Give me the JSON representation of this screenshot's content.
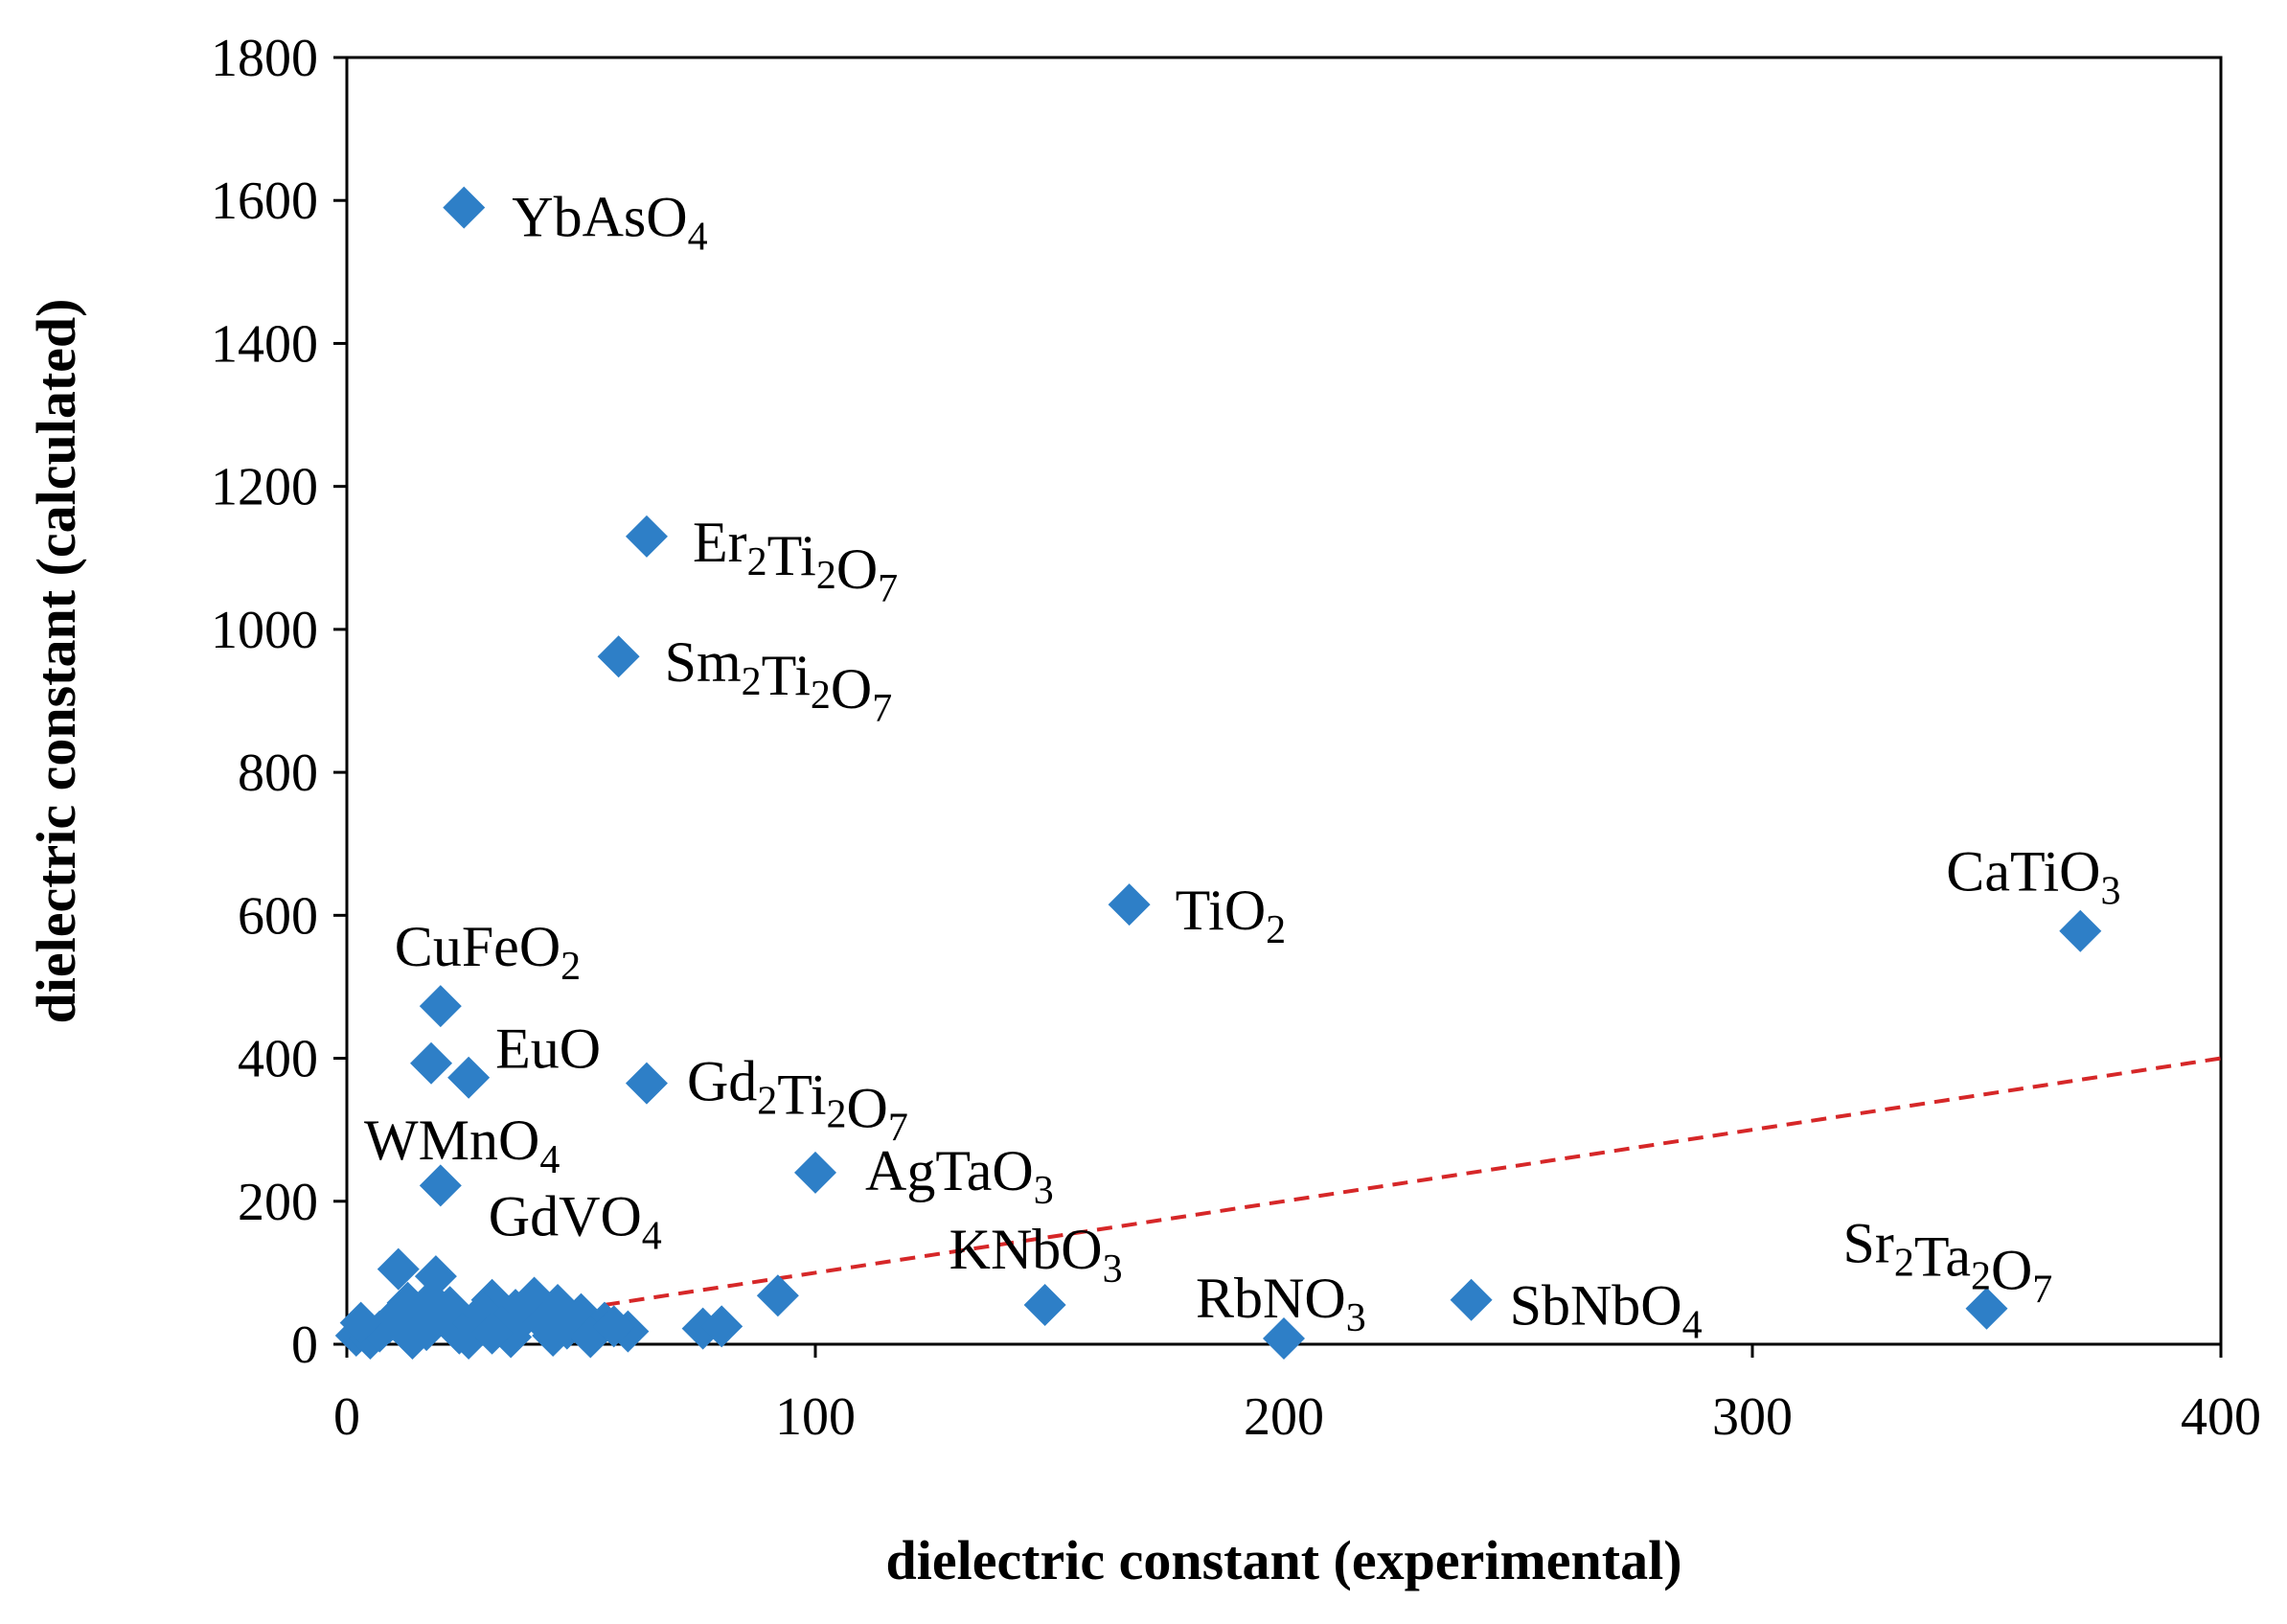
{
  "chart_data": {
    "type": "scatter",
    "title": "",
    "xlabel": "dielectric constant (experimental)",
    "ylabel": "dielectric constant (calculated)",
    "xlim": [
      0,
      400
    ],
    "ylim": [
      0,
      1800
    ],
    "xticks": [
      "0",
      "100",
      "200",
      "300",
      "400"
    ],
    "yticks": [
      "0",
      "200",
      "400",
      "600",
      "800",
      "1000",
      "1200",
      "1400",
      "1600",
      "1800"
    ],
    "grid": false,
    "legend": "none",
    "marker_color": "#2e7fc7",
    "line_color": "#d62728",
    "reference_line": {
      "style": "dashed",
      "x": [
        55,
        400
      ],
      "y": [
        55,
        400
      ]
    },
    "labeled_points": [
      {
        "label": "YbAsO",
        "sub": "4",
        "x": 25,
        "y": 1590
      },
      {
        "label": "Er",
        "sub": "2",
        "mid": "Ti",
        "sub2": "2",
        "end": "O",
        "sub3": "7",
        "x": 64,
        "y": 1130
      },
      {
        "label": "Sm",
        "sub": "2",
        "mid": "Ti",
        "sub2": "2",
        "end": "O",
        "sub3": "7",
        "x": 58,
        "y": 962
      },
      {
        "label": "TiO",
        "sub": "2",
        "x": 167,
        "y": 615
      },
      {
        "label": "CaTiO",
        "sub": "3",
        "x": 370,
        "y": 578
      },
      {
        "label": "CuFeO",
        "sub": "2",
        "x": 20,
        "y": 473
      },
      {
        "label": "EuO",
        "sub": "",
        "x": 26,
        "y": 373
      },
      {
        "label": "Gd",
        "sub": "2",
        "mid": "Ti",
        "sub2": "2",
        "end": "O",
        "sub3": "7",
        "x": 64,
        "y": 365
      },
      {
        "label": "WMnO",
        "sub": "4",
        "x": 18,
        "y": 393
      },
      {
        "label": "GdVO",
        "sub": "4",
        "x": 20,
        "y": 222
      },
      {
        "label": "AgTaO",
        "sub": "3",
        "x": 100,
        "y": 240
      },
      {
        "label": "KNbO",
        "sub": "3",
        "x": 149,
        "y": 55
      },
      {
        "label": "RbNO",
        "sub": "3",
        "x": 200,
        "y": 8
      },
      {
        "label": "SbNbO",
        "sub": "4",
        "x": 240,
        "y": 62
      },
      {
        "label": "Sr",
        "sub": "2",
        "mid": "Ta",
        "sub2": "2",
        "end": "O",
        "sub3": "7",
        "x": 350,
        "y": 50
      }
    ],
    "unlabeled_points": [
      {
        "x": 11,
        "y": 105
      },
      {
        "x": 19,
        "y": 95
      },
      {
        "x": 92,
        "y": 68
      },
      {
        "x": 31,
        "y": 62
      },
      {
        "x": 40,
        "y": 65
      },
      {
        "x": 45,
        "y": 55
      },
      {
        "x": 13,
        "y": 58
      },
      {
        "x": 22,
        "y": 52
      },
      {
        "x": 36,
        "y": 48
      },
      {
        "x": 50,
        "y": 42
      },
      {
        "x": 55,
        "y": 30
      },
      {
        "x": 60,
        "y": 18
      },
      {
        "x": 76,
        "y": 22
      },
      {
        "x": 80,
        "y": 25
      },
      {
        "x": 2,
        "y": 12
      },
      {
        "x": 5,
        "y": 8
      },
      {
        "x": 7,
        "y": 18
      },
      {
        "x": 9,
        "y": 30
      },
      {
        "x": 12,
        "y": 25
      },
      {
        "x": 15,
        "y": 35
      },
      {
        "x": 17,
        "y": 20
      },
      {
        "x": 21,
        "y": 40
      },
      {
        "x": 24,
        "y": 15
      },
      {
        "x": 27,
        "y": 30
      },
      {
        "x": 29,
        "y": 45
      },
      {
        "x": 33,
        "y": 25
      },
      {
        "x": 35,
        "y": 10
      },
      {
        "x": 38,
        "y": 38
      },
      {
        "x": 42,
        "y": 30
      },
      {
        "x": 47,
        "y": 22
      },
      {
        "x": 52,
        "y": 10
      },
      {
        "x": 57,
        "y": 25
      },
      {
        "x": 3,
        "y": 30
      },
      {
        "x": 14,
        "y": 8
      },
      {
        "x": 26,
        "y": 8
      },
      {
        "x": 44,
        "y": 12
      },
      {
        "x": 31,
        "y": 15
      },
      {
        "x": 18,
        "y": 62
      }
    ]
  }
}
